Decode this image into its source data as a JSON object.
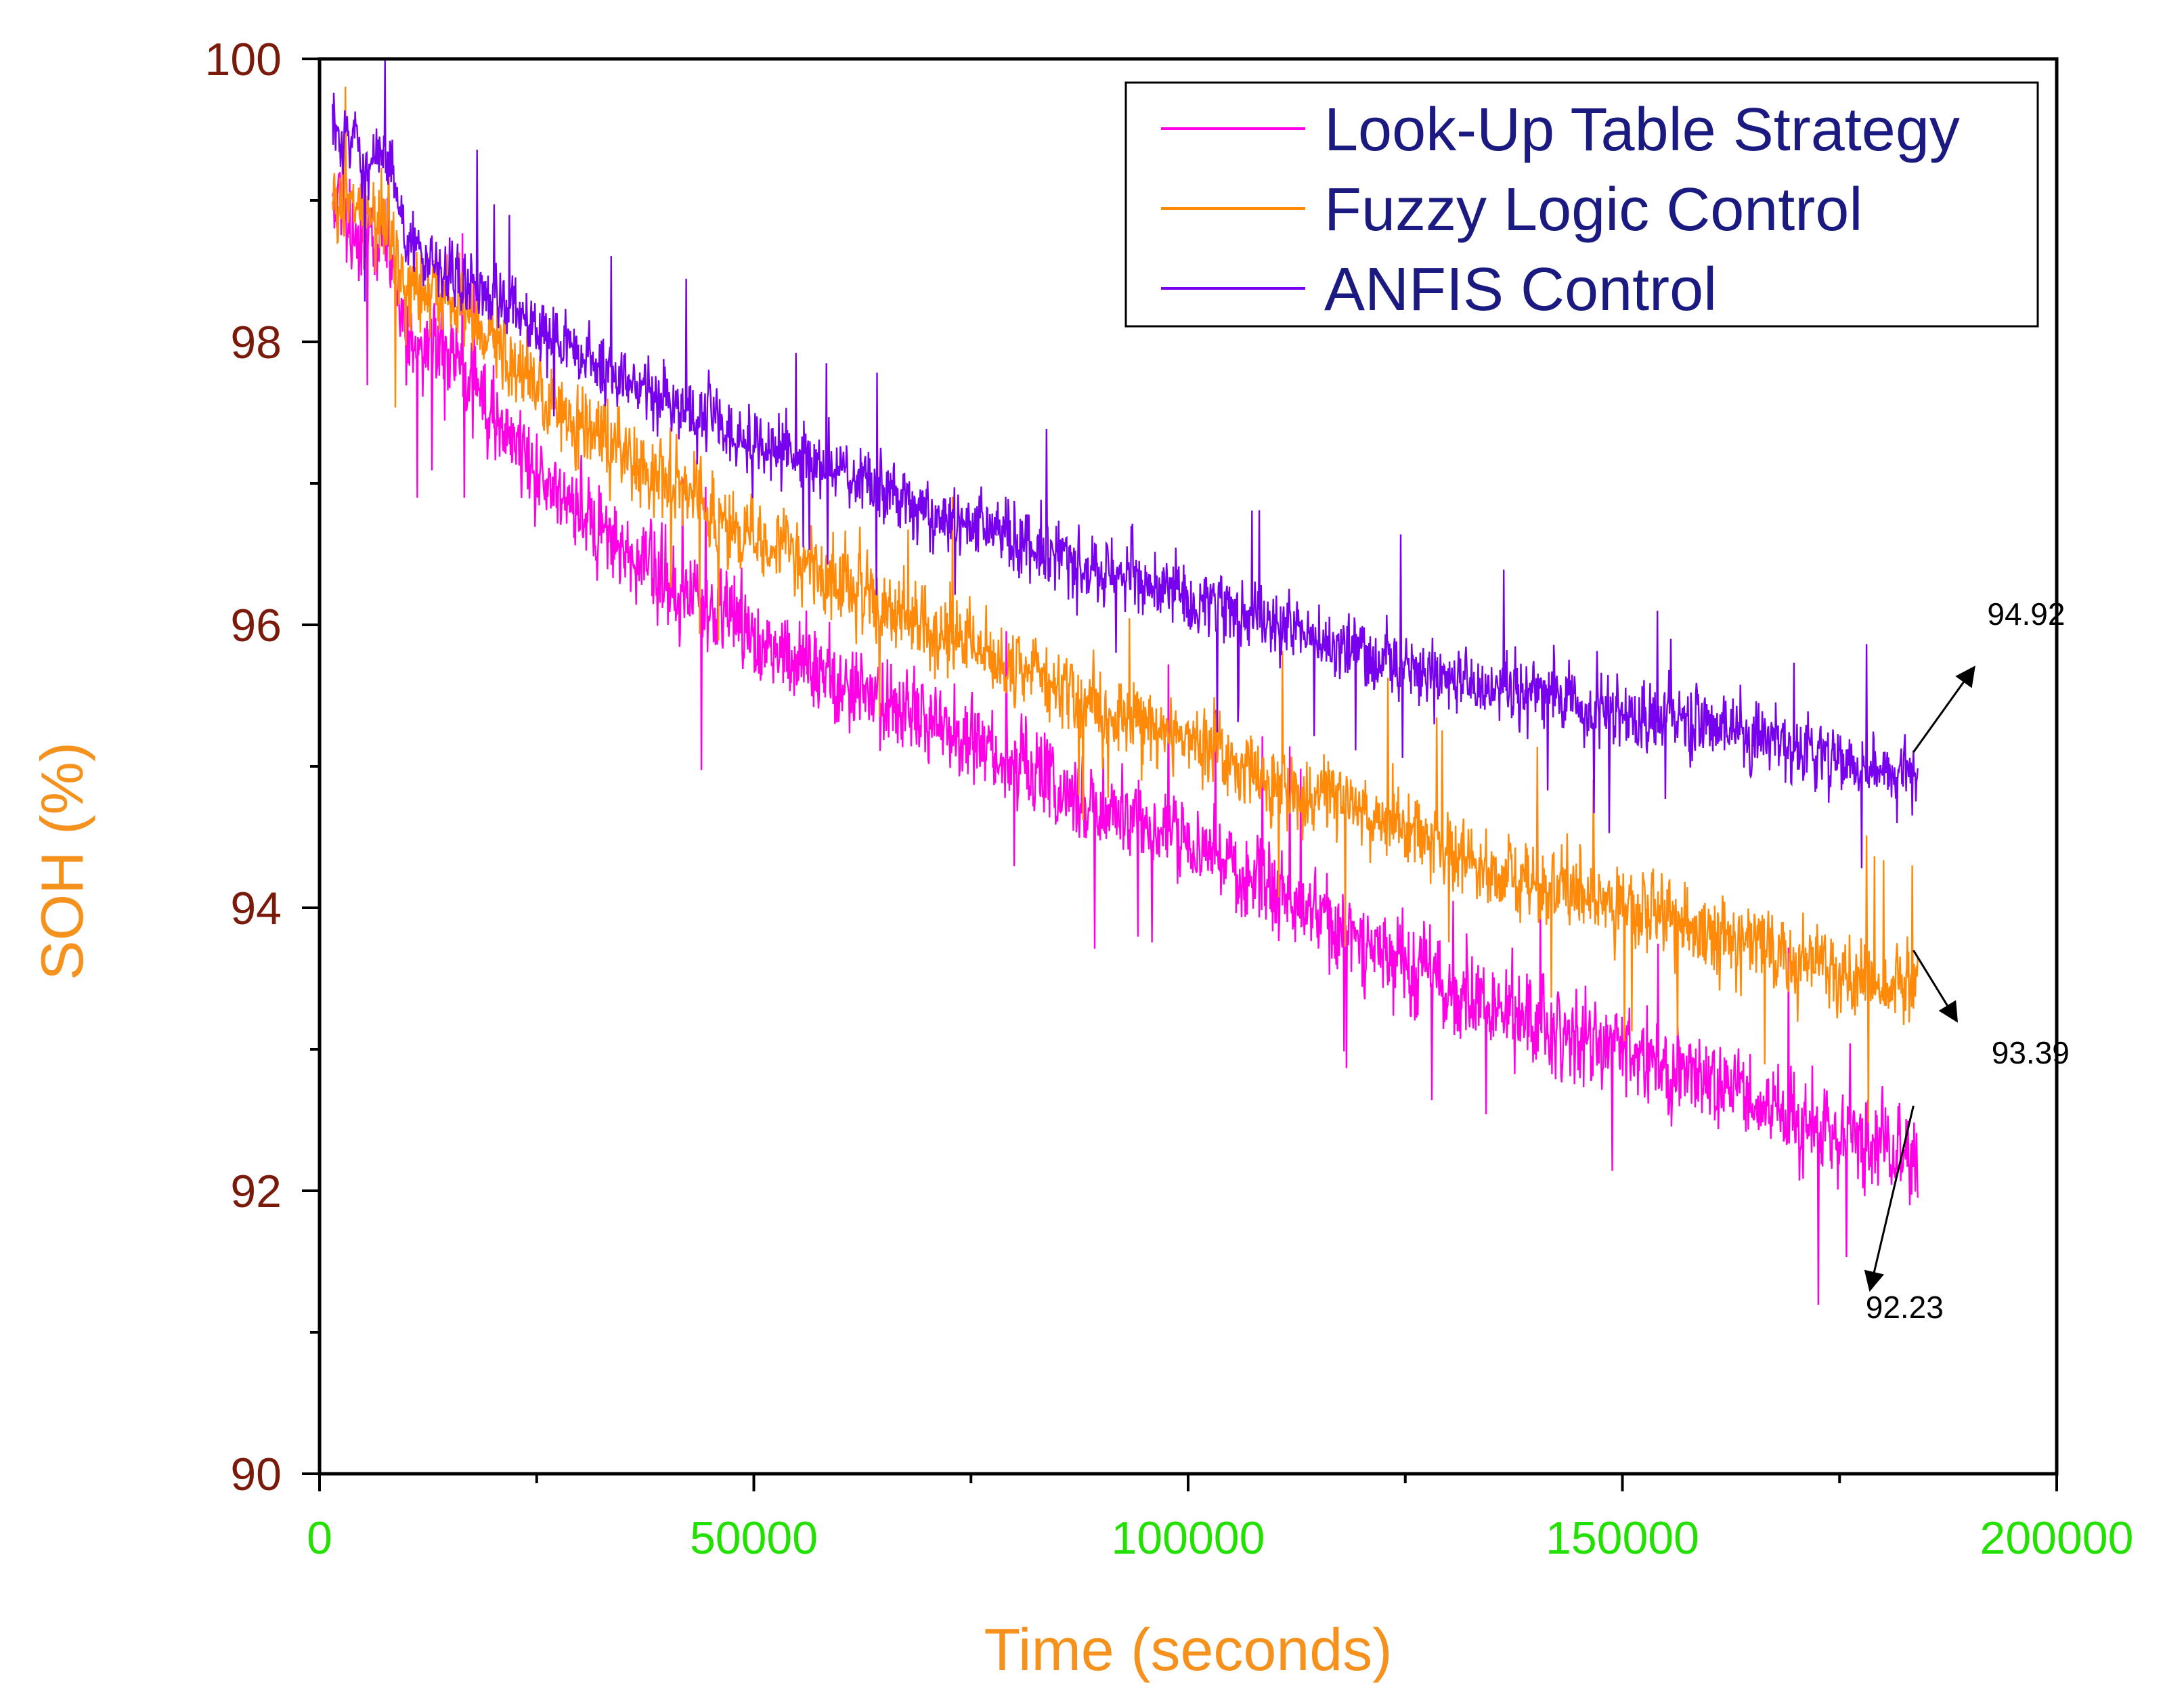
{
  "chart_data": {
    "type": "line",
    "xlabel": "Time (seconds)",
    "ylabel": "SOH (%)",
    "xlim": [
      0,
      200000
    ],
    "ylim": [
      90,
      100
    ],
    "x_ticks": [
      "0",
      "50000",
      "100000",
      "150000",
      "200000"
    ],
    "x_tick_values": [
      0,
      50000,
      100000,
      150000,
      200000
    ],
    "x_minor_ticks": [
      25000,
      75000,
      125000,
      175000
    ],
    "y_ticks": [
      "90",
      "92",
      "94",
      "96",
      "98",
      "100"
    ],
    "y_tick_values": [
      90,
      92,
      94,
      96,
      98,
      100
    ],
    "y_minor_ticks": [
      91,
      93,
      95,
      97,
      99
    ],
    "colors": {
      "y_tick_labels": "#7a1a0a",
      "x_tick_labels": "#22e000",
      "axis_titles": "#f5921e",
      "legend_text": "#1a1a80",
      "annotations": "#000000"
    },
    "legend": {
      "position": "top-right",
      "entries": [
        "Look-Up Table Strategy",
        "Fuzzy Logic Control",
        "ANFIS Control"
      ]
    },
    "series": [
      {
        "name": "Look-Up Table Strategy",
        "color": "#ff00e6",
        "noise": 0.42,
        "x": [
          1500,
          5000,
          8000,
          10000,
          15000,
          20000,
          25000,
          30000,
          40000,
          50000,
          60000,
          70000,
          80000,
          90000,
          100000,
          110000,
          120000,
          130000,
          140000,
          150000,
          160000,
          170000,
          180000,
          184000
        ],
        "values": [
          99.0,
          98.7,
          98.8,
          98.0,
          97.9,
          97.5,
          97.1,
          96.8,
          96.3,
          95.9,
          95.6,
          95.3,
          95.0,
          94.7,
          94.5,
          94.1,
          93.8,
          93.4,
          93.2,
          93.0,
          92.8,
          92.5,
          92.3,
          92.2
        ]
      },
      {
        "name": "Fuzzy Logic Control",
        "color": "#ff8a0a",
        "noise": 0.38,
        "x": [
          1500,
          5000,
          8000,
          10000,
          15000,
          20000,
          25000,
          30000,
          40000,
          50000,
          60000,
          70000,
          80000,
          90000,
          100000,
          110000,
          120000,
          130000,
          140000,
          150000,
          160000,
          170000,
          180000,
          184000
        ],
        "values": [
          99.0,
          98.9,
          98.9,
          98.4,
          98.3,
          98.0,
          97.7,
          97.4,
          97.0,
          96.6,
          96.3,
          96.0,
          95.7,
          95.4,
          95.2,
          94.9,
          94.7,
          94.4,
          94.2,
          94.0,
          93.8,
          93.6,
          93.5,
          93.4
        ]
      },
      {
        "name": "ANFIS Control",
        "color": "#7700ee",
        "noise": 0.32,
        "x": [
          1500,
          5000,
          8000,
          10000,
          15000,
          20000,
          25000,
          30000,
          40000,
          50000,
          60000,
          70000,
          80000,
          90000,
          100000,
          110000,
          120000,
          130000,
          140000,
          150000,
          160000,
          170000,
          180000,
          184000
        ],
        "values": [
          99.5,
          99.3,
          99.3,
          98.7,
          98.5,
          98.3,
          98.1,
          97.9,
          97.6,
          97.3,
          97.1,
          96.8,
          96.6,
          96.4,
          96.2,
          96.0,
          95.8,
          95.6,
          95.5,
          95.4,
          95.3,
          95.1,
          95.0,
          94.9
        ]
      }
    ],
    "annotations": [
      {
        "text": "94.92",
        "arrow_from": [
          183500,
          95.1
        ],
        "arrow_to": [
          190500,
          95.7
        ],
        "label_at": [
          192000,
          96.0
        ]
      },
      {
        "text": "93.39",
        "arrow_from": [
          183500,
          93.7
        ],
        "arrow_to": [
          188500,
          93.2
        ],
        "label_at": [
          192500,
          92.9
        ]
      },
      {
        "text": "92.23",
        "arrow_from": [
          183500,
          92.6
        ],
        "arrow_to": [
          178500,
          91.3
        ],
        "label_at": [
          178000,
          91.1
        ]
      }
    ]
  }
}
